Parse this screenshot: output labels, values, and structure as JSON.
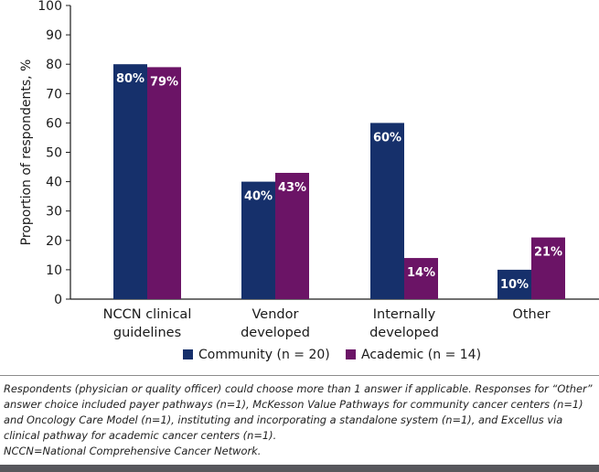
{
  "chart_data": {
    "type": "bar",
    "title": "",
    "xlabel": "",
    "ylabel": "Proportion of respondents, %",
    "ylim": [
      0,
      100
    ],
    "yticks": [
      0,
      10,
      20,
      30,
      40,
      50,
      60,
      70,
      80,
      90,
      100
    ],
    "categories": [
      [
        "NCCN clinical",
        "guidelines"
      ],
      [
        "Vendor",
        "developed"
      ],
      [
        "Internally",
        "developed"
      ],
      [
        "Other"
      ]
    ],
    "series": [
      {
        "name": "Community (n = 20)",
        "color": "#16306b",
        "values": [
          80,
          40,
          60,
          10
        ],
        "labels": [
          "80%",
          "40%",
          "60%",
          "10%"
        ]
      },
      {
        "name": "Academic (n = 14)",
        "color": "#6b1466",
        "values": [
          79,
          43,
          14,
          21
        ],
        "labels": [
          "79%",
          "43%",
          "14%",
          "21%"
        ]
      }
    ],
    "legend": "bottom"
  },
  "footnote": {
    "text": "Respondents (physician or quality officer) could choose more than 1 answer if applicable. Responses for “Other” answer choice included payer pathways (n=1), McKesson Value Pathways for community cancer centers (n=1) and Oncology Care Model (n=1), instituting and incorporating a standalone system (n=1), and Excellus via clinical pathway for academic cancer centers (n=1).",
    "abbrev": "NCCN=National Comprehensive Cancer Network."
  }
}
